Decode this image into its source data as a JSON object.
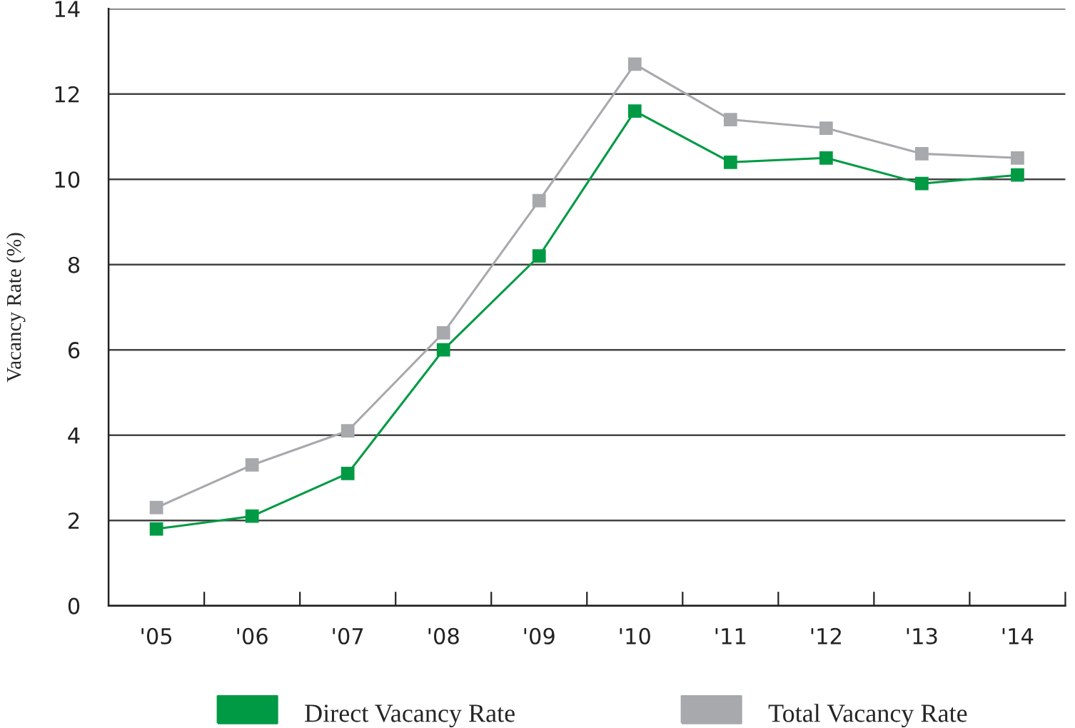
{
  "chart_data": {
    "type": "line",
    "ylabel": "Vacancy Rate (%)",
    "categories": [
      "'05",
      "'06",
      "'07",
      "'08",
      "'09",
      "'10",
      "'11",
      "'12",
      "'13",
      "'14"
    ],
    "series": [
      {
        "name": "Direct Vacancy Rate",
        "color": "#009a44",
        "values": [
          1.8,
          2.1,
          3.1,
          6.0,
          8.2,
          11.6,
          10.4,
          10.5,
          9.9,
          10.1
        ]
      },
      {
        "name": "Total Vacancy Rate",
        "color": "#a7a9ac",
        "values": [
          2.3,
          3.3,
          4.1,
          6.4,
          9.5,
          12.7,
          11.4,
          11.2,
          10.6,
          10.5
        ]
      }
    ],
    "ylim": [
      0,
      14
    ],
    "yticks": [
      0,
      2,
      4,
      6,
      8,
      10,
      12,
      14
    ],
    "grid": "y",
    "legend": "bottom",
    "marker": "square",
    "line_style": "solid"
  }
}
